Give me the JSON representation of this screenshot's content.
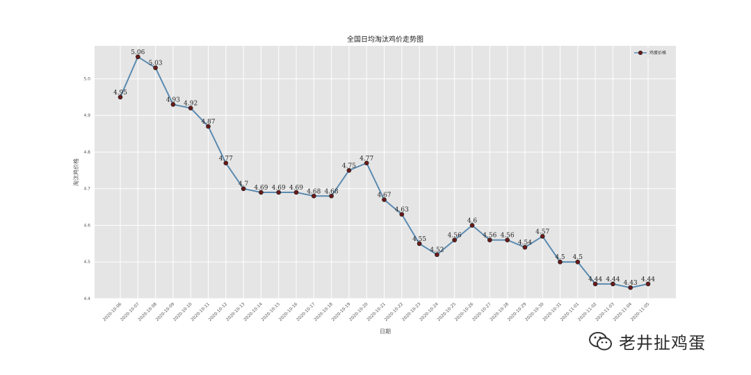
{
  "chart_data": {
    "type": "line",
    "title": "全国日均淘汰鸡价走势图",
    "xlabel": "日期",
    "ylabel": "淘汰鸡价格",
    "legend": {
      "label": "鸡蛋价格",
      "placement": "top-right"
    },
    "x": [
      "2020-10-06",
      "2020-10-07",
      "2020-10-08",
      "2020-10-09",
      "2020-10-10",
      "2020-10-11",
      "2020-10-12",
      "2020-10-13",
      "2020-10-14",
      "2020-10-15",
      "2020-10-16",
      "2020-10-17",
      "2020-10-18",
      "2020-10-19",
      "2020-10-20",
      "2020-10-21",
      "2020-10-22",
      "2020-10-23",
      "2020-10-24",
      "2020-10-25",
      "2020-10-26",
      "2020-10-27",
      "2020-10-28",
      "2020-10-29",
      "2020-10-30",
      "2020-10-31",
      "2020-11-01",
      "2020-11-02",
      "2020-11-03",
      "2020-11-04",
      "2020-11-05"
    ],
    "values": [
      4.95,
      5.06,
      5.03,
      4.93,
      4.92,
      4.87,
      4.77,
      4.7,
      4.69,
      4.69,
      4.69,
      4.68,
      4.68,
      4.75,
      4.77,
      4.67,
      4.63,
      4.55,
      4.52,
      4.56,
      4.6,
      4.56,
      4.56,
      4.54,
      4.57,
      4.5,
      4.5,
      4.44,
      4.44,
      4.43,
      4.44
    ],
    "value_labels": [
      "4.95",
      "5.06",
      "5.03",
      "4.93",
      "4.92",
      "4.87",
      "4.77",
      "4.7",
      "4.69",
      "4.69",
      "4.69",
      "4.68",
      "4.68",
      "4.75",
      "4.77",
      "4.67",
      "4.63",
      "4.55",
      "4.52",
      "4.56",
      "4.6",
      "4.56",
      "4.56",
      "4.54",
      "4.57",
      "4.5",
      "4.5",
      "4.44",
      "4.44",
      "4.43",
      "4.44"
    ],
    "yticks": [
      "4.4",
      "4.5",
      "4.6",
      "4.7",
      "4.8",
      "4.9",
      "5.0"
    ],
    "ylim": [
      4.4,
      5.09
    ],
    "grid": true,
    "colors": {
      "line": "#5a8ab0",
      "marker": "#6b1a1a",
      "background": "#e5e5e5",
      "grid": "#ffffff"
    }
  },
  "watermark": {
    "text": "老井扯鸡蛋",
    "icon": "wechat-icon"
  }
}
